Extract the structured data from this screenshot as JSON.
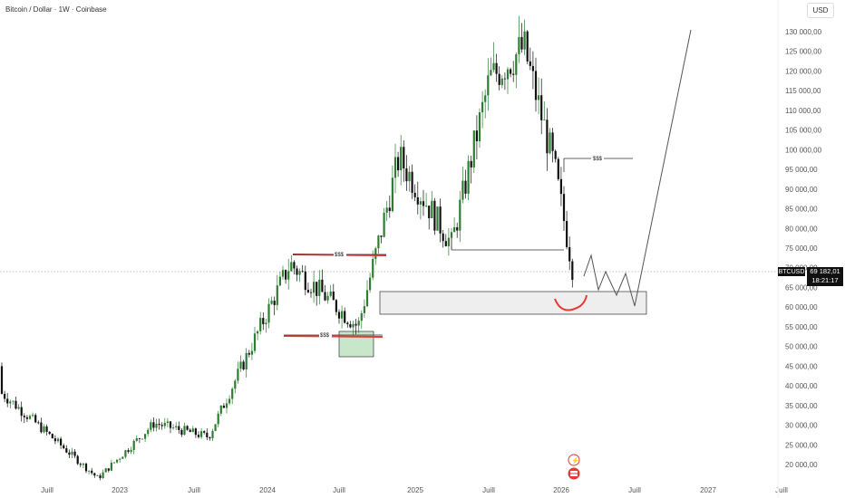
{
  "header": {
    "title": "Bitcoin / Dollar · 1W · Coinbase",
    "currency_button": "USD"
  },
  "price_tag": {
    "symbol": "BTCUSD",
    "price": "69 182,01",
    "countdown": "18:21:17"
  },
  "axis": {
    "y_labels": [
      "130 000,00",
      "125 000,00",
      "120 000,00",
      "115 000,00",
      "110 000,00",
      "105 000,00",
      "100 000,00",
      "95 000,00",
      "90 000,00",
      "85 000,00",
      "80 000,00",
      "75 000,00",
      "70 000,00",
      "65 000,00",
      "60 000,00",
      "55 000,00",
      "50 000,00",
      "45 000,00",
      "40 000,00",
      "35 000,00",
      "30 000,00",
      "25 000,00",
      "20 000,00"
    ],
    "x_labels": [
      "Juill",
      "2023",
      "Juill",
      "2024",
      "Juill",
      "2025",
      "Juill",
      "2026",
      "Juill",
      "2027",
      "Juill"
    ]
  },
  "annotations": {
    "liquidity_top": "$$$",
    "liquidity_low": "$$$",
    "liquidity_recent": "$$$"
  },
  "colors": {
    "up": "#2e7d32",
    "down": "#111111",
    "red": "#e53935",
    "grey_zone": "#eeeeee",
    "green_zone": "#c8e6c9"
  },
  "chart_data": {
    "type": "candlestick",
    "y_range": [
      18000,
      132000
    ],
    "last_price": 69182.01,
    "key_points": [
      {
        "date": "2022-05",
        "close": 30000
      },
      {
        "date": "2022-11",
        "close": 16500
      },
      {
        "date": "2023-06",
        "close": 30500
      },
      {
        "date": "2023-10",
        "close": 35000
      },
      {
        "date": "2024-03",
        "close": 71000
      },
      {
        "date": "2024-08",
        "close": 55000
      },
      {
        "date": "2024-11",
        "close": 96000
      },
      {
        "date": "2025-04",
        "close": 76000
      },
      {
        "date": "2025-08",
        "close": 118000
      },
      {
        "date": "2025-10",
        "close": 126000
      },
      {
        "date": "2026-01",
        "close": 95000
      },
      {
        "date": "2026-02",
        "close": 69182
      }
    ],
    "zones": [
      {
        "type": "demand",
        "from": 58500,
        "to": 64500
      },
      {
        "type": "demand",
        "from": 47500,
        "to": 54500
      }
    ]
  }
}
